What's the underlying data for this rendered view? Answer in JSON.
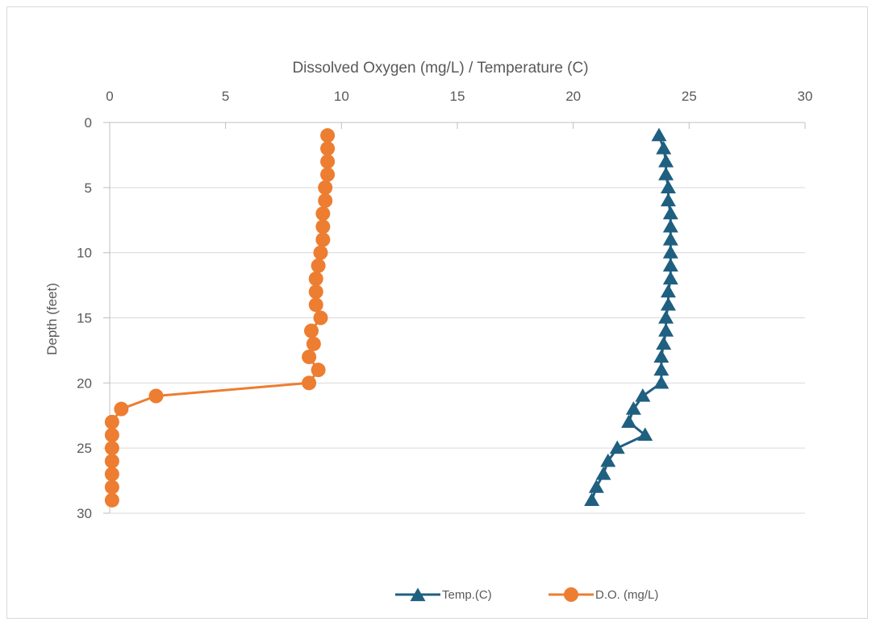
{
  "chart_data": {
    "type": "line",
    "title": "Dissolved Oxygen (mg/L) / Temperature (C)",
    "xlabel": "Dissolved Oxygen (mg/L) / Temperature (C)",
    "ylabel": "Depth (feet)",
    "xlim": [
      0,
      30
    ],
    "ylim": [
      0,
      30
    ],
    "y_inverted": true,
    "x_axis_position": "top",
    "x_ticks": [
      0,
      5,
      10,
      15,
      20,
      25,
      30
    ],
    "y_ticks": [
      0,
      5,
      10,
      15,
      20,
      25,
      30
    ],
    "grid": "horizontal",
    "legend_position": "bottom",
    "series": [
      {
        "name": "Temp.(C)",
        "color": "#1f5f80",
        "marker": "triangle",
        "points": [
          [
            23.7,
            1
          ],
          [
            23.9,
            2
          ],
          [
            24.0,
            3
          ],
          [
            24.0,
            4
          ],
          [
            24.1,
            5
          ],
          [
            24.1,
            6
          ],
          [
            24.2,
            7
          ],
          [
            24.2,
            8
          ],
          [
            24.2,
            9
          ],
          [
            24.2,
            10
          ],
          [
            24.2,
            11
          ],
          [
            24.2,
            12
          ],
          [
            24.1,
            13
          ],
          [
            24.1,
            14
          ],
          [
            24.0,
            15
          ],
          [
            24.0,
            16
          ],
          [
            23.9,
            17
          ],
          [
            23.8,
            18
          ],
          [
            23.8,
            19
          ],
          [
            23.8,
            20
          ],
          [
            23.0,
            21
          ],
          [
            22.6,
            22
          ],
          [
            22.4,
            23
          ],
          [
            23.1,
            24
          ],
          [
            21.9,
            25
          ],
          [
            21.5,
            26
          ],
          [
            21.3,
            27
          ],
          [
            21.0,
            28
          ],
          [
            20.8,
            29
          ]
        ]
      },
      {
        "name": "D.O. (mg/L)",
        "color": "#ed7d31",
        "marker": "circle",
        "points": [
          [
            9.4,
            1
          ],
          [
            9.4,
            2
          ],
          [
            9.4,
            3
          ],
          [
            9.4,
            4
          ],
          [
            9.3,
            5
          ],
          [
            9.3,
            6
          ],
          [
            9.2,
            7
          ],
          [
            9.2,
            8
          ],
          [
            9.2,
            9
          ],
          [
            9.1,
            10
          ],
          [
            9.0,
            11
          ],
          [
            8.9,
            12
          ],
          [
            8.9,
            13
          ],
          [
            8.9,
            14
          ],
          [
            9.1,
            15
          ],
          [
            8.7,
            16
          ],
          [
            8.8,
            17
          ],
          [
            8.6,
            18
          ],
          [
            9.0,
            19
          ],
          [
            8.6,
            20
          ],
          [
            2.0,
            21
          ],
          [
            0.5,
            22
          ],
          [
            0.1,
            23
          ],
          [
            0.1,
            24
          ],
          [
            0.1,
            25
          ],
          [
            0.1,
            26
          ],
          [
            0.1,
            27
          ],
          [
            0.1,
            28
          ],
          [
            0.1,
            29
          ]
        ]
      }
    ]
  }
}
